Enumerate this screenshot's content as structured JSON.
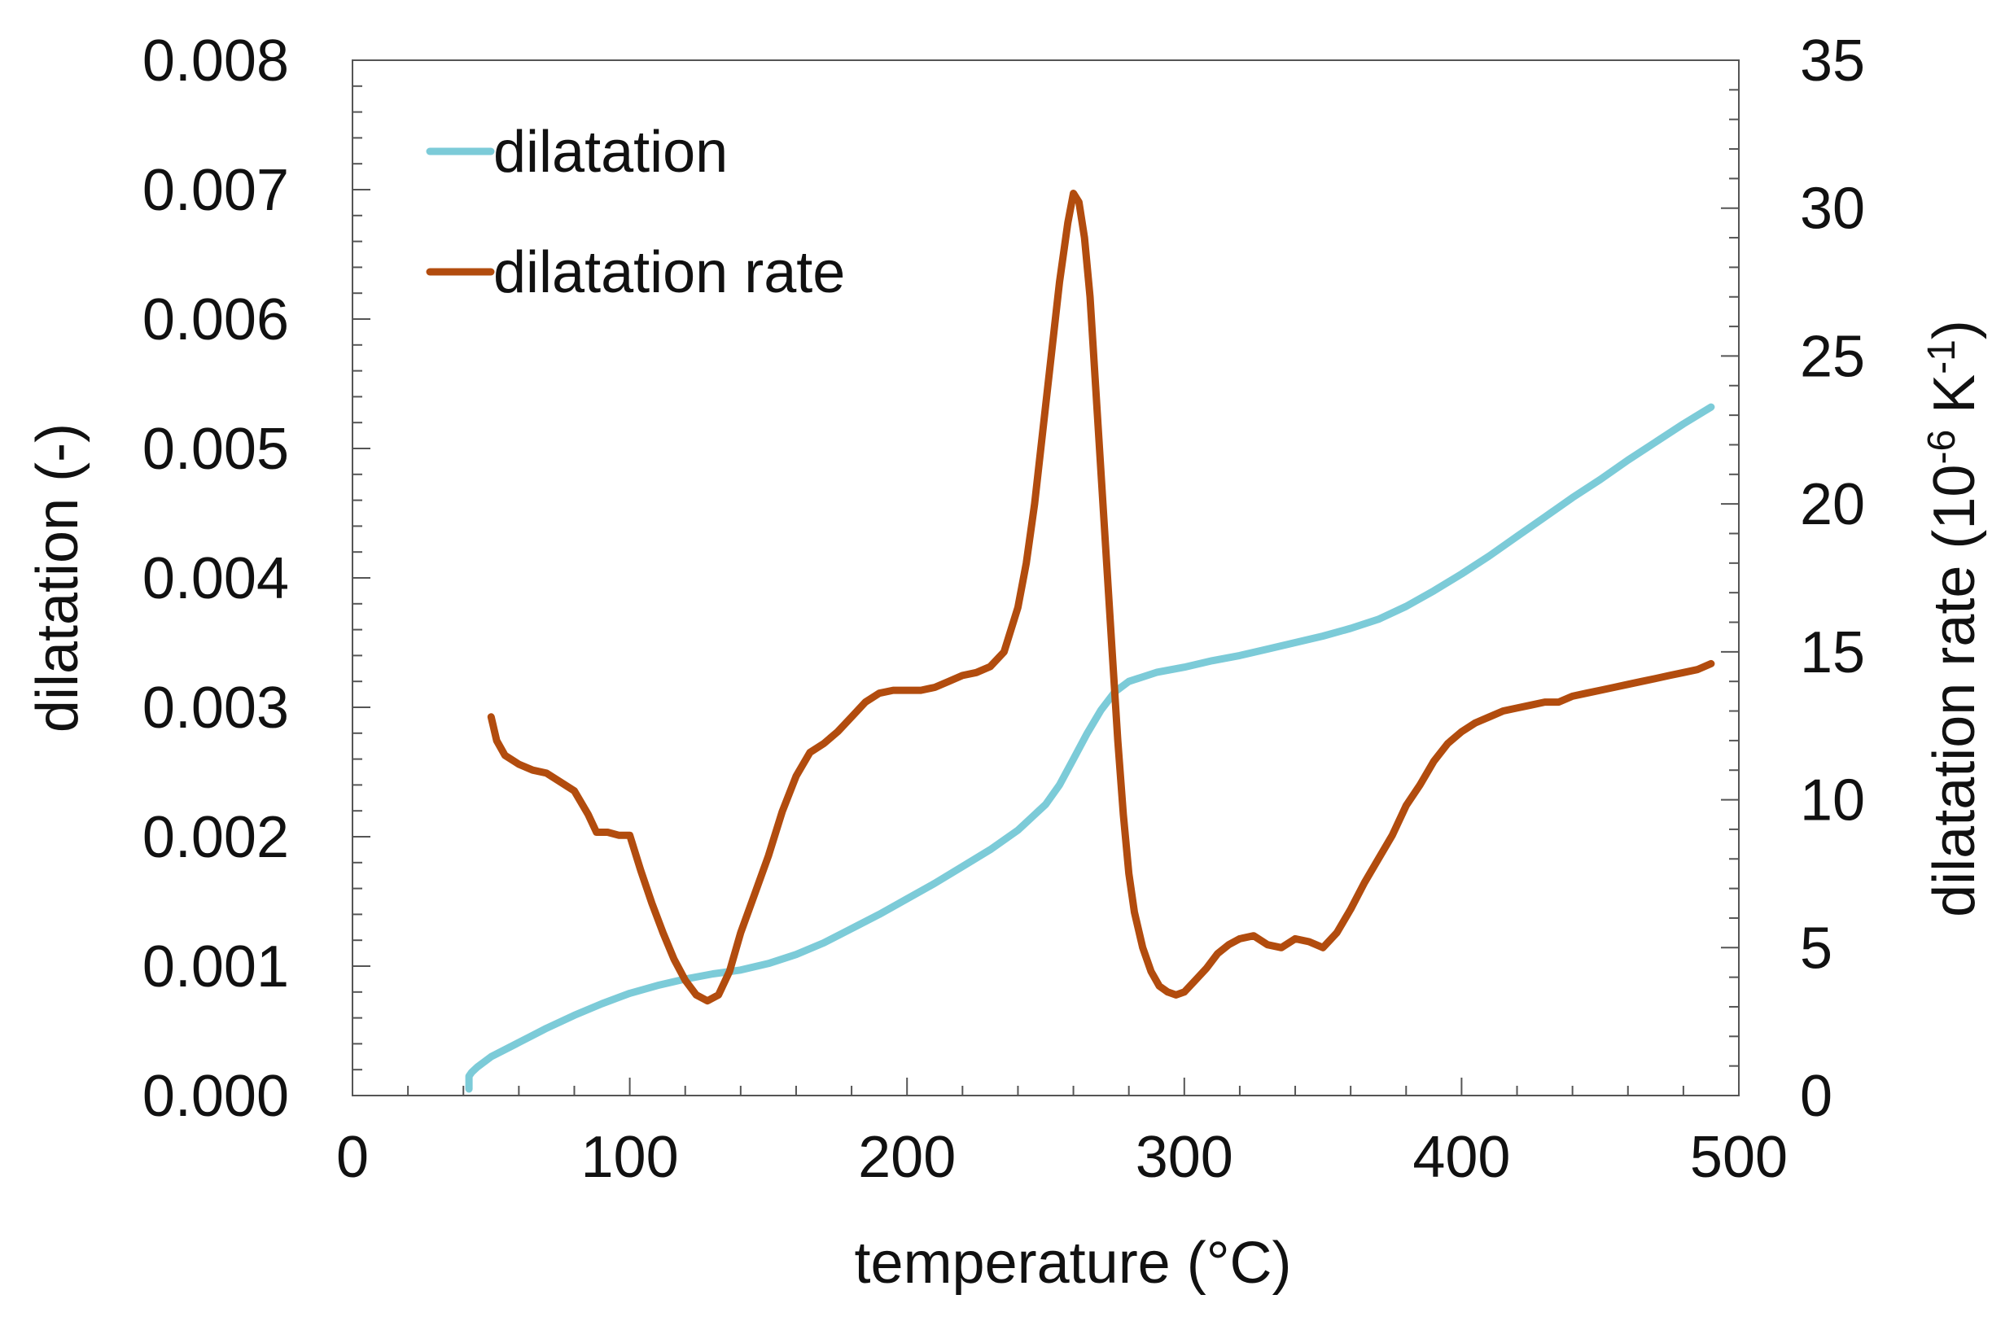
{
  "chart_data": {
    "type": "line",
    "xlabel": "temperature (°C)",
    "ylabel_left": "dilatation (-)",
    "ylabel_right_prefix": "dilatation rate (10",
    "ylabel_right_exp1": "-6",
    "ylabel_right_mid": " K",
    "ylabel_right_exp2": "-1",
    "ylabel_right_suffix": ")",
    "xlim": [
      0,
      500
    ],
    "ylim_left": [
      0,
      0.008
    ],
    "ylim_right": [
      0,
      35
    ],
    "x_ticks": [
      "0",
      "100",
      "200",
      "300",
      "400",
      "500"
    ],
    "y_left_ticks": [
      "0.000",
      "0.001",
      "0.002",
      "0.003",
      "0.004",
      "0.005",
      "0.006",
      "0.007",
      "0.008"
    ],
    "y_right_ticks": [
      "0",
      "5",
      "10",
      "15",
      "20",
      "25",
      "30",
      "35"
    ],
    "legend_position": "top-left",
    "series": [
      {
        "name": "dilatation",
        "axis": "left",
        "color": "#7ccbd8",
        "x": [
          42,
          42,
          43,
          45,
          50,
          60,
          70,
          80,
          90,
          100,
          110,
          120,
          130,
          140,
          150,
          160,
          170,
          180,
          190,
          200,
          210,
          220,
          230,
          240,
          250,
          255,
          260,
          265,
          270,
          275,
          280,
          290,
          300,
          310,
          320,
          330,
          340,
          350,
          360,
          370,
          380,
          390,
          400,
          410,
          420,
          430,
          440,
          450,
          460,
          470,
          480,
          490
        ],
        "values": [
          5e-05,
          0.00015,
          0.00018,
          0.00022,
          0.0003,
          0.00041,
          0.00052,
          0.00062,
          0.00071,
          0.00079,
          0.00085,
          0.0009,
          0.00094,
          0.00097,
          0.00102,
          0.00109,
          0.00118,
          0.00129,
          0.0014,
          0.00152,
          0.00164,
          0.00177,
          0.0019,
          0.00205,
          0.00225,
          0.0024,
          0.0026,
          0.0028,
          0.00298,
          0.00312,
          0.0032,
          0.00327,
          0.00331,
          0.00336,
          0.0034,
          0.00345,
          0.0035,
          0.00355,
          0.00361,
          0.00368,
          0.00378,
          0.0039,
          0.00403,
          0.00417,
          0.00432,
          0.00447,
          0.00462,
          0.00476,
          0.00491,
          0.00505,
          0.00519,
          0.00532
        ]
      },
      {
        "name": "dilatation rate",
        "axis": "right",
        "color": "#b24c0e",
        "x": [
          50,
          52,
          55,
          60,
          65,
          70,
          75,
          80,
          85,
          88,
          92,
          96,
          100,
          104,
          108,
          112,
          116,
          120,
          124,
          128,
          132,
          136,
          140,
          145,
          150,
          155,
          160,
          165,
          170,
          175,
          180,
          185,
          190,
          195,
          200,
          205,
          210,
          215,
          220,
          225,
          230,
          235,
          240,
          243,
          246,
          249,
          252,
          255,
          258,
          260,
          262,
          264,
          266,
          268,
          270,
          272,
          274,
          276,
          278,
          280,
          282,
          285,
          288,
          291,
          294,
          297,
          300,
          304,
          308,
          312,
          316,
          320,
          325,
          330,
          335,
          340,
          345,
          350,
          355,
          360,
          365,
          370,
          375,
          380,
          385,
          390,
          395,
          400,
          405,
          410,
          415,
          420,
          425,
          430,
          435,
          440,
          445,
          450,
          455,
          460,
          465,
          470,
          475,
          480,
          485,
          490
        ],
        "values": [
          12.8,
          12.0,
          11.5,
          11.2,
          11.0,
          10.9,
          10.6,
          10.3,
          9.5,
          8.9,
          8.9,
          8.8,
          8.8,
          7.6,
          6.5,
          5.5,
          4.6,
          3.9,
          3.4,
          3.2,
          3.4,
          4.2,
          5.5,
          6.8,
          8.1,
          9.6,
          10.8,
          11.6,
          11.9,
          12.3,
          12.8,
          13.3,
          13.6,
          13.7,
          13.7,
          13.7,
          13.8,
          14.0,
          14.2,
          14.3,
          14.5,
          15.0,
          16.5,
          18.0,
          20.0,
          22.5,
          25.0,
          27.5,
          29.5,
          30.5,
          30.2,
          29.0,
          27.0,
          24.0,
          21.0,
          18.0,
          15.0,
          12.0,
          9.5,
          7.5,
          6.2,
          5.0,
          4.2,
          3.7,
          3.5,
          3.4,
          3.5,
          3.9,
          4.3,
          4.8,
          5.1,
          5.3,
          5.4,
          5.1,
          5.0,
          5.3,
          5.2,
          5.0,
          5.5,
          6.3,
          7.2,
          8.0,
          8.8,
          9.8,
          10.5,
          11.3,
          11.9,
          12.3,
          12.6,
          12.8,
          13.0,
          13.1,
          13.2,
          13.3,
          13.3,
          13.5,
          13.6,
          13.7,
          13.8,
          13.9,
          14.0,
          14.1,
          14.2,
          14.3,
          14.4,
          14.6
        ]
      }
    ]
  }
}
